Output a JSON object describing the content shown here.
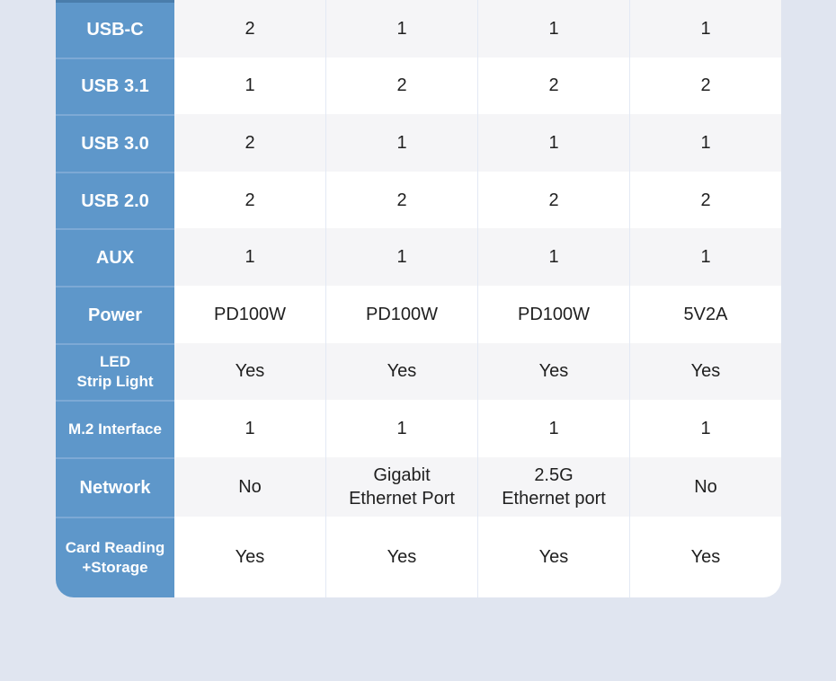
{
  "page": {
    "background": "#e0e5f0"
  },
  "colors": {
    "header_blue": "#5e97ca",
    "header_divider": "#7da9d5",
    "header_top_cut_line": "#4a7dab",
    "row_alt": "#f5f5f7",
    "row_white": "#ffffff",
    "value_text": "#1f1f1f",
    "label_text": "#ffffff",
    "column_divider": "#e3e9f4",
    "page_bg": "#e0e5f0"
  },
  "table": {
    "rows": [
      {
        "label": "USB-C",
        "values": [
          "2",
          "1",
          "1",
          "1"
        ]
      },
      {
        "label": "USB 3.1",
        "values": [
          "1",
          "2",
          "2",
          "2"
        ]
      },
      {
        "label": "USB 3.0",
        "values": [
          "2",
          "1",
          "1",
          "1"
        ]
      },
      {
        "label": "USB 2.0",
        "values": [
          "2",
          "2",
          "2",
          "2"
        ]
      },
      {
        "label": "AUX",
        "values": [
          "1",
          "1",
          "1",
          "1"
        ]
      },
      {
        "label": "Power",
        "values": [
          "PD100W",
          "PD100W",
          "PD100W",
          "5V2A"
        ]
      },
      {
        "label": "LED\nStrip Light",
        "values": [
          "Yes",
          "Yes",
          "Yes",
          "Yes"
        ]
      },
      {
        "label": "M.2 Interface",
        "values": [
          "1",
          "1",
          "1",
          "1"
        ]
      },
      {
        "label": "Network",
        "values": [
          "No",
          "Gigabit\nEthernet Port",
          "2.5G\nEthernet port",
          "No"
        ]
      },
      {
        "label": "Card Reading\n+Storage",
        "values": [
          "Yes",
          "Yes",
          "Yes",
          "Yes"
        ]
      }
    ]
  },
  "chart_data": {
    "type": "table",
    "title": "",
    "column_headers_visible": false,
    "num_product_columns": 4,
    "row_labels": [
      "USB-C",
      "USB 3.1",
      "USB 3.0",
      "USB 2.0",
      "AUX",
      "Power",
      "LED Strip Light",
      "M.2 Interface",
      "Network",
      "Card Reading +Storage"
    ],
    "rows": [
      [
        "2",
        "1",
        "1",
        "1"
      ],
      [
        "1",
        "2",
        "2",
        "2"
      ],
      [
        "2",
        "1",
        "1",
        "1"
      ],
      [
        "2",
        "2",
        "2",
        "2"
      ],
      [
        "1",
        "1",
        "1",
        "1"
      ],
      [
        "PD100W",
        "PD100W",
        "PD100W",
        "5V2A"
      ],
      [
        "Yes",
        "Yes",
        "Yes",
        "Yes"
      ],
      [
        "1",
        "1",
        "1",
        "1"
      ],
      [
        "No",
        "Gigabit Ethernet Port",
        "2.5G Ethernet port",
        "No"
      ],
      [
        "Yes",
        "Yes",
        "Yes",
        "Yes"
      ]
    ]
  }
}
